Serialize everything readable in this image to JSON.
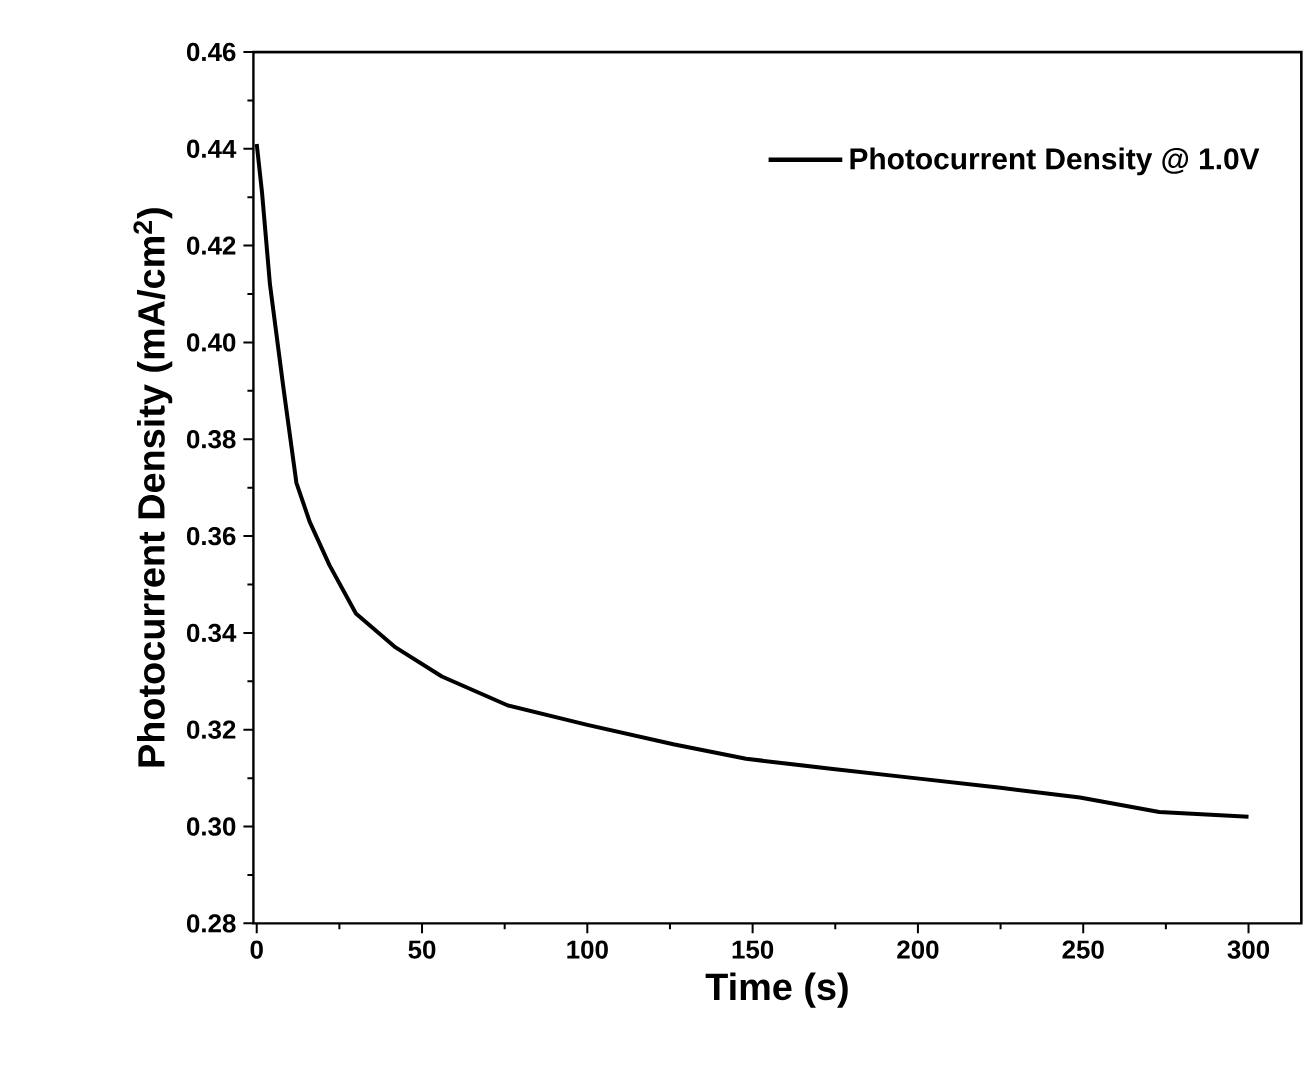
{
  "chart_data": {
    "type": "line",
    "xlabel": "Time (s)",
    "ylabel": "Photocurrent Density (mA/cm$^{2}$)",
    "xlim": [
      -1,
      316
    ],
    "ylim": [
      0.28,
      0.46
    ],
    "xticks": [
      0,
      50,
      100,
      150,
      200,
      250,
      300
    ],
    "yticks": [
      0.28,
      {
        "value": 0.3,
        "label": "0.30"
      },
      0.32,
      0.34,
      0.36,
      0.38,
      {
        "value": 0.4,
        "label": "0.40"
      },
      0.42,
      0.44,
      0.46
    ],
    "legend": "top right",
    "marker": "none",
    "line_style": "solid",
    "series": [
      {
        "name": "Photocurrent Density @ 1.0V",
        "color": "#000000",
        "x": [
          0,
          1.6,
          4,
          8,
          12,
          16,
          22,
          30,
          42,
          56,
          76,
          100,
          126,
          148,
          173,
          199,
          225,
          249,
          273,
          300
        ],
        "values": [
          0.441,
          0.431,
          0.412,
          0.391,
          0.371,
          0.363,
          0.354,
          0.344,
          0.337,
          0.331,
          0.325,
          0.321,
          0.317,
          0.314,
          0.312,
          0.31,
          0.308,
          0.306,
          0.303,
          0.302
        ]
      }
    ]
  }
}
